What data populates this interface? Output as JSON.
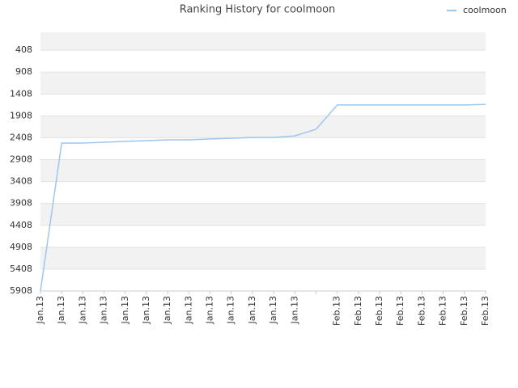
{
  "chart_data": {
    "type": "line",
    "title": "Ranking History for coolmoon",
    "categories": [
      "Jan.13",
      "Jan.13",
      "Jan.13",
      "Jan.13",
      "Jan.13",
      "Jan.13",
      "Jan.13",
      "Jan.13",
      "Jan.13",
      "Jan.13",
      "Jan.13",
      "Jan.13",
      "Jan.13",
      null,
      "Feb.13",
      "Feb.13",
      "Feb.13",
      "Feb.13",
      "Feb.13",
      "Feb.13",
      "Feb.13",
      "Feb.13"
    ],
    "series": [
      {
        "name": "coolmoon",
        "color": "#9cc6f2",
        "values": [
          5908,
          2530,
          2530,
          2510,
          2490,
          2475,
          2455,
          2455,
          2435,
          2420,
          2400,
          2400,
          2365,
          2215,
          1660,
          1660,
          1660,
          1660,
          1660,
          1660,
          1660,
          1645
        ]
      }
    ],
    "ylim": [
      5908,
      0
    ],
    "yticks": [
      408,
      908,
      1408,
      1908,
      2408,
      2908,
      3408,
      3908,
      4408,
      4908,
      5408,
      5908
    ],
    "grid": true,
    "legend": "top-right"
  }
}
